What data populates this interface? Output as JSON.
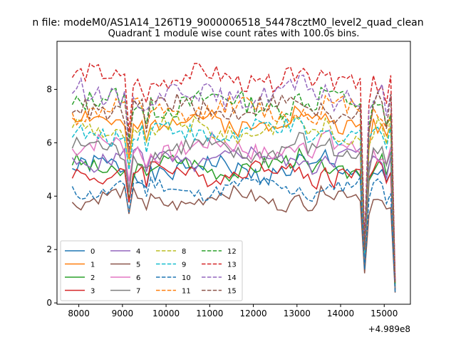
{
  "suptitle": "n file: modeM0/AS1A14_126T19_9000006518_54478cztM0_level2_quad_clean",
  "chart_data": {
    "type": "line",
    "title": "Quadrant 1 module wise count rates with 100.0s bins.",
    "xlabel": "",
    "ylabel": "",
    "xlim": [
      7500,
      15600
    ],
    "ylim": [
      -0.05,
      9.8
    ],
    "x_ticks": [
      8000,
      9000,
      10000,
      11000,
      12000,
      13000,
      14000,
      15000
    ],
    "x_tick_labels": [
      "8000",
      "9000",
      "10000",
      "11000",
      "12000",
      "13000",
      "14000",
      "15000"
    ],
    "y_ticks": [
      0,
      2,
      4,
      6,
      8
    ],
    "y_tick_labels": [
      "0",
      "2",
      "4",
      "6",
      "8"
    ],
    "x_offset_label": "+4.989e8",
    "grid": false,
    "legend_position": "lower-left",
    "legend_columns": 4,
    "x_start": 7850,
    "x_step": 100,
    "drops": [
      [
        9150,
        0.78
      ],
      [
        9550,
        0.9
      ],
      [
        14550,
        0.28
      ],
      [
        14650,
        0.9
      ],
      [
        15050,
        0.9
      ],
      [
        15250,
        0.1
      ]
    ],
    "series": [
      {
        "name": "0",
        "level": 5.0,
        "amp": 0.35,
        "color": "#1f77b4",
        "dash": "solid"
      },
      {
        "name": "1",
        "level": 6.8,
        "amp": 0.35,
        "color": "#ff7f0e",
        "dash": "solid"
      },
      {
        "name": "2",
        "level": 5.1,
        "amp": 0.3,
        "color": "#2ca02c",
        "dash": "solid"
      },
      {
        "name": "3",
        "level": 4.9,
        "amp": 0.3,
        "color": "#d62728",
        "dash": "solid"
      },
      {
        "name": "4",
        "level": 5.4,
        "amp": 0.3,
        "color": "#9467bd",
        "dash": "solid"
      },
      {
        "name": "5",
        "level": 3.9,
        "amp": 0.25,
        "color": "#8c564b",
        "dash": "solid"
      },
      {
        "name": "6",
        "level": 5.8,
        "amp": 0.35,
        "color": "#e377c2",
        "dash": "solid"
      },
      {
        "name": "7",
        "level": 5.7,
        "amp": 0.35,
        "color": "#7f7f7f",
        "dash": "solid"
      },
      {
        "name": "8",
        "level": 6.5,
        "amp": 0.35,
        "color": "#bcbd22",
        "dash": "dashed"
      },
      {
        "name": "9",
        "level": 6.4,
        "amp": 0.35,
        "color": "#17becf",
        "dash": "dashed"
      },
      {
        "name": "10",
        "level": 4.3,
        "amp": 0.25,
        "color": "#1f77b4",
        "dash": "dashed"
      },
      {
        "name": "11",
        "level": 7.2,
        "amp": 0.35,
        "color": "#ff7f0e",
        "dash": "dashed"
      },
      {
        "name": "12",
        "level": 7.5,
        "amp": 0.4,
        "color": "#2ca02c",
        "dash": "dashed"
      },
      {
        "name": "13",
        "level": 8.4,
        "amp": 0.35,
        "color": "#d62728",
        "dash": "dashed"
      },
      {
        "name": "14",
        "level": 7.8,
        "amp": 0.4,
        "color": "#9467bd",
        "dash": "dashed"
      },
      {
        "name": "15",
        "level": 7.3,
        "amp": 0.4,
        "color": "#8c564b",
        "dash": "dashed"
      }
    ]
  }
}
